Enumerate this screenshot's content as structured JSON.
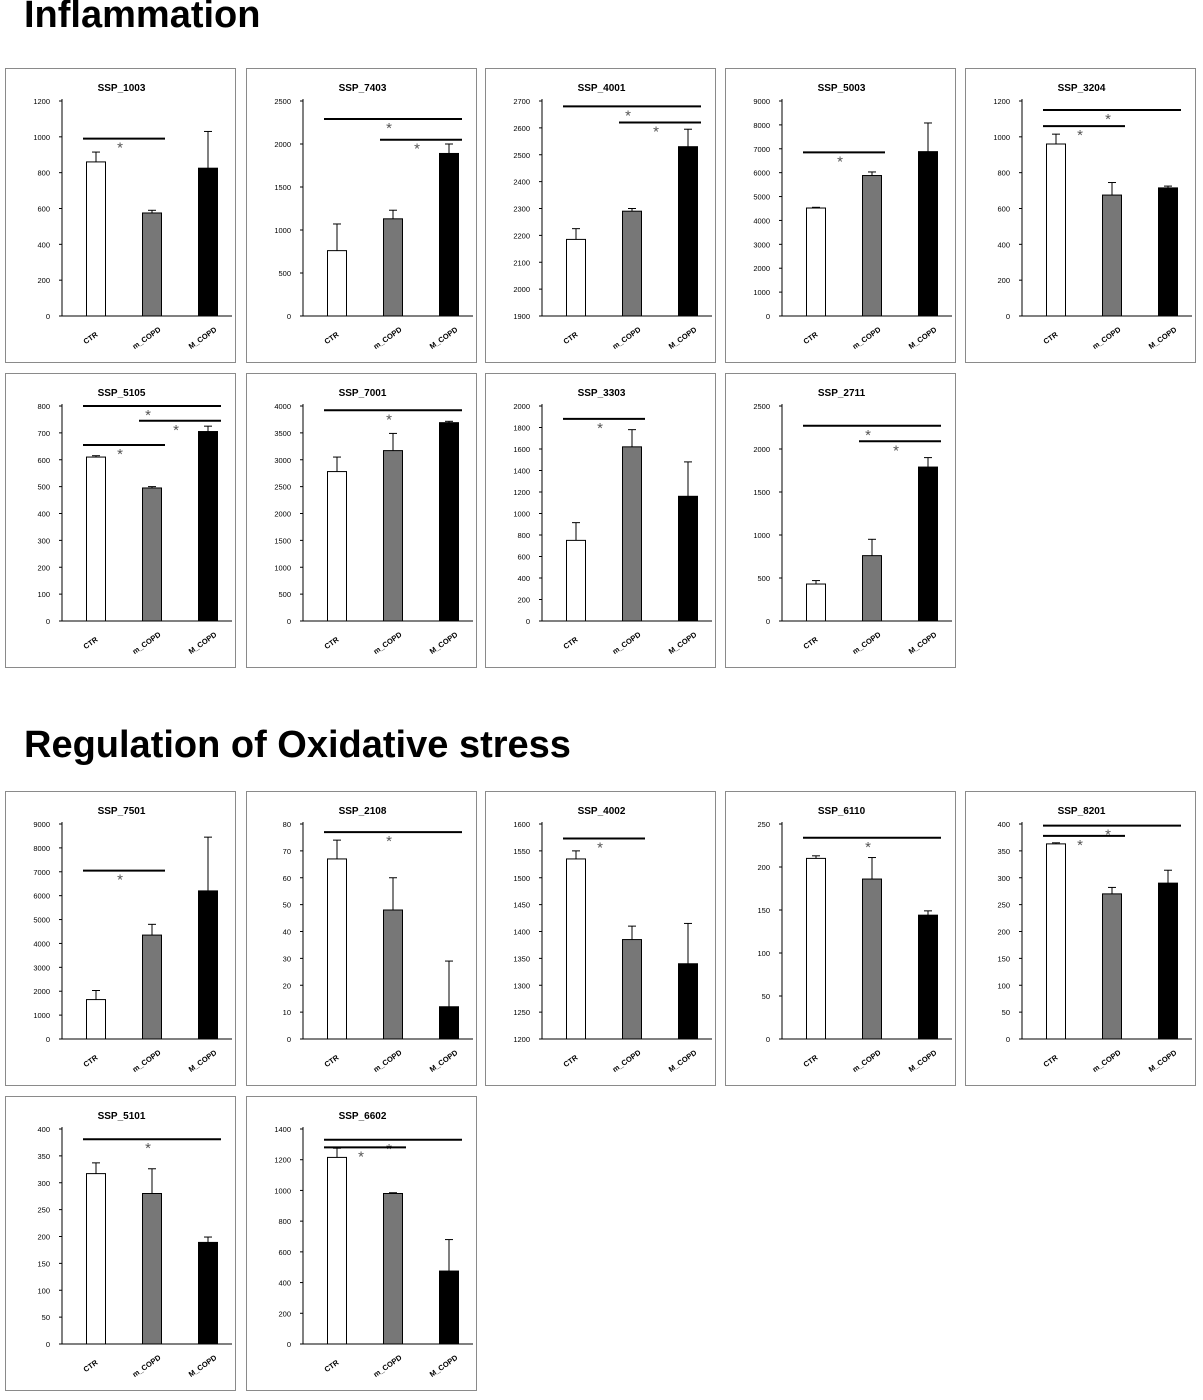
{
  "sections": [
    {
      "title": "Inflammation"
    },
    {
      "title": "Regulation of Oxidative stress"
    }
  ],
  "colors": {
    "CTR": "#ffffff",
    "m_COPD": "#777777",
    "M_COPD": "#000000",
    "border": "#8a8a8a",
    "star": "#555555"
  },
  "chart_data": [
    {
      "type": "bar",
      "section": 0,
      "title": "SSP_1003",
      "categories": [
        "CTR",
        "m_COPD",
        "M_COPD"
      ],
      "values": [
        860,
        575,
        825
      ],
      "errors": [
        55,
        15,
        205
      ],
      "ylim": [
        0,
        1200
      ],
      "ticks": [
        0,
        200,
        400,
        600,
        800,
        1000,
        1200
      ],
      "brackets": [
        {
          "from": 0,
          "to": 1,
          "y": 990
        }
      ],
      "stars": [
        "*"
      ]
    },
    {
      "type": "bar",
      "section": 0,
      "title": "SSP_7403",
      "categories": [
        "CTR",
        "m_COPD",
        "M_COPD"
      ],
      "values": [
        760,
        1130,
        1890
      ],
      "errors": [
        310,
        100,
        110
      ],
      "ylim": [
        0,
        2500
      ],
      "ticks": [
        0,
        500,
        1000,
        1500,
        2000,
        2500
      ],
      "brackets": [
        {
          "from": 0,
          "to": 2,
          "y": 2290
        },
        {
          "from": 1,
          "to": 2,
          "y": 2050
        }
      ],
      "stars": [
        "*",
        "*"
      ]
    },
    {
      "type": "bar",
      "section": 0,
      "title": "SSP_4001",
      "categories": [
        "CTR",
        "m_COPD",
        "M_COPD"
      ],
      "values": [
        2185,
        2290,
        2530
      ],
      "errors": [
        40,
        10,
        65
      ],
      "ylim": [
        1900,
        2700
      ],
      "ticks": [
        1900,
        2000,
        2100,
        2200,
        2300,
        2400,
        2500,
        2600,
        2700
      ],
      "brackets": [
        {
          "from": 0,
          "to": 2,
          "y": 2680
        },
        {
          "from": 1,
          "to": 2,
          "y": 2620
        }
      ],
      "stars": [
        "*",
        "*"
      ]
    },
    {
      "type": "bar",
      "section": 0,
      "title": "SSP_5003",
      "categories": [
        "CTR",
        "m_COPD",
        "M_COPD"
      ],
      "values": [
        4520,
        5880,
        6880
      ],
      "errors": [
        30,
        150,
        1200
      ],
      "ylim": [
        0,
        9000
      ],
      "ticks": [
        0,
        1000,
        2000,
        3000,
        4000,
        5000,
        6000,
        7000,
        8000,
        9000
      ],
      "brackets": [
        {
          "from": 0,
          "to": 1,
          "y": 6850
        }
      ],
      "stars": [
        "*"
      ]
    },
    {
      "type": "bar",
      "section": 0,
      "title": "SSP_3204",
      "categories": [
        "CTR",
        "m_COPD",
        "M_COPD"
      ],
      "values": [
        960,
        675,
        715
      ],
      "errors": [
        55,
        70,
        10
      ],
      "ylim": [
        0,
        1200
      ],
      "ticks": [
        0,
        200,
        400,
        600,
        800,
        1000,
        1200
      ],
      "brackets": [
        {
          "from": 0,
          "to": 2,
          "y": 1150
        },
        {
          "from": 0,
          "to": 1,
          "y": 1060
        }
      ],
      "stars": [
        "*",
        "*"
      ]
    },
    {
      "type": "bar",
      "section": 0,
      "title": "SSP_5105",
      "categories": [
        "CTR",
        "m_COPD",
        "M_COPD"
      ],
      "values": [
        610,
        495,
        705
      ],
      "errors": [
        5,
        5,
        20
      ],
      "ylim": [
        0,
        800
      ],
      "ticks": [
        0,
        100,
        200,
        300,
        400,
        500,
        600,
        700,
        800
      ],
      "brackets": [
        {
          "from": 0,
          "to": 2,
          "y": 800
        },
        {
          "from": 1,
          "to": 2,
          "y": 745
        },
        {
          "from": 0,
          "to": 1,
          "y": 655
        }
      ],
      "stars": [
        "*",
        "*",
        "*"
      ]
    },
    {
      "type": "bar",
      "section": 0,
      "title": "SSP_7001",
      "categories": [
        "CTR",
        "m_COPD",
        "M_COPD"
      ],
      "values": [
        2780,
        3170,
        3690
      ],
      "errors": [
        270,
        320,
        25
      ],
      "ylim": [
        0,
        4000
      ],
      "ticks": [
        0,
        500,
        1000,
        1500,
        2000,
        2500,
        3000,
        3500,
        4000
      ],
      "brackets": [
        {
          "from": 0,
          "to": 2,
          "y": 3920
        }
      ],
      "stars": [
        "*"
      ]
    },
    {
      "type": "bar",
      "section": 0,
      "title": "SSP_3303",
      "categories": [
        "CTR",
        "m_COPD",
        "M_COPD"
      ],
      "values": [
        750,
        1620,
        1160
      ],
      "errors": [
        165,
        160,
        320
      ],
      "ylim": [
        0,
        2000
      ],
      "ticks": [
        0,
        200,
        400,
        600,
        800,
        1000,
        1200,
        1400,
        1600,
        1800,
        2000
      ],
      "brackets": [
        {
          "from": 0,
          "to": 1,
          "y": 1880
        }
      ],
      "stars": [
        "*"
      ]
    },
    {
      "type": "bar",
      "section": 0,
      "title": "SSP_2711",
      "categories": [
        "CTR",
        "m_COPD",
        "M_COPD"
      ],
      "values": [
        430,
        760,
        1790
      ],
      "errors": [
        40,
        190,
        110
      ],
      "ylim": [
        0,
        2500
      ],
      "ticks": [
        0,
        500,
        1000,
        1500,
        2000,
        2500
      ],
      "brackets": [
        {
          "from": 0,
          "to": 2,
          "y": 2270
        },
        {
          "from": 1,
          "to": 2,
          "y": 2090
        }
      ],
      "stars": [
        "*",
        "*"
      ]
    },
    {
      "type": "bar",
      "section": 1,
      "title": "SSP_7501",
      "categories": [
        "CTR",
        "m_COPD",
        "M_COPD"
      ],
      "values": [
        1650,
        4350,
        6200
      ],
      "errors": [
        380,
        450,
        2250
      ],
      "ylim": [
        0,
        9000
      ],
      "ticks": [
        0,
        1000,
        2000,
        3000,
        4000,
        5000,
        6000,
        7000,
        8000,
        9000
      ],
      "brackets": [
        {
          "from": 0,
          "to": 1,
          "y": 7050
        }
      ],
      "stars": [
        "*"
      ]
    },
    {
      "type": "bar",
      "section": 1,
      "title": "SSP_2108",
      "categories": [
        "CTR",
        "m_COPD",
        "M_COPD"
      ],
      "values": [
        67,
        48,
        12
      ],
      "errors": [
        7,
        12,
        17
      ],
      "ylim": [
        0,
        80
      ],
      "ticks": [
        0,
        10,
        20,
        30,
        40,
        50,
        60,
        70,
        80
      ],
      "brackets": [
        {
          "from": 0,
          "to": 2,
          "y": 77
        }
      ],
      "stars": [
        "*"
      ]
    },
    {
      "type": "bar",
      "section": 1,
      "title": "SSP_4002",
      "categories": [
        "CTR",
        "m_COPD",
        "M_COPD"
      ],
      "values": [
        1535,
        1385,
        1340
      ],
      "errors": [
        15,
        25,
        75
      ],
      "ylim": [
        1200,
        1600
      ],
      "ticks": [
        1200,
        1250,
        1300,
        1350,
        1400,
        1450,
        1500,
        1550,
        1600
      ],
      "brackets": [
        {
          "from": 0,
          "to": 1,
          "y": 1573
        }
      ],
      "stars": [
        "*"
      ]
    },
    {
      "type": "bar",
      "section": 1,
      "title": "SSP_6110",
      "categories": [
        "CTR",
        "m_COPD",
        "M_COPD"
      ],
      "values": [
        210,
        186,
        144
      ],
      "errors": [
        3,
        25,
        5
      ],
      "ylim": [
        0,
        250
      ],
      "ticks": [
        0,
        50,
        100,
        150,
        200,
        250
      ],
      "brackets": [
        {
          "from": 0,
          "to": 2,
          "y": 234
        }
      ],
      "stars": [
        "*"
      ]
    },
    {
      "type": "bar",
      "section": 1,
      "title": "SSP_8201",
      "categories": [
        "CTR",
        "m_COPD",
        "M_COPD"
      ],
      "values": [
        363,
        270,
        290
      ],
      "errors": [
        2,
        12,
        24
      ],
      "ylim": [
        0,
        400
      ],
      "ticks": [
        0,
        50,
        100,
        150,
        200,
        250,
        300,
        350,
        400
      ],
      "brackets": [
        {
          "from": 0,
          "to": 2,
          "y": 397
        },
        {
          "from": 0,
          "to": 1,
          "y": 378
        }
      ],
      "stars": [
        "*",
        "*"
      ]
    },
    {
      "type": "bar",
      "section": 1,
      "title": "SSP_5101",
      "categories": [
        "CTR",
        "m_COPD",
        "M_COPD"
      ],
      "values": [
        317,
        280,
        189
      ],
      "errors": [
        20,
        46,
        10
      ],
      "ylim": [
        0,
        400
      ],
      "ticks": [
        0,
        50,
        100,
        150,
        200,
        250,
        300,
        350,
        400
      ],
      "brackets": [
        {
          "from": 0,
          "to": 2,
          "y": 381
        }
      ],
      "stars": [
        "*"
      ]
    },
    {
      "type": "bar",
      "section": 1,
      "title": "SSP_6602",
      "categories": [
        "CTR",
        "m_COPD",
        "M_COPD"
      ],
      "values": [
        1215,
        980,
        475
      ],
      "errors": [
        60,
        5,
        205
      ],
      "ylim": [
        0,
        1400
      ],
      "ticks": [
        0,
        200,
        400,
        600,
        800,
        1000,
        1200,
        1400
      ],
      "brackets": [
        {
          "from": 0,
          "to": 2,
          "y": 1330
        },
        {
          "from": 0,
          "to": 1,
          "y": 1280
        }
      ],
      "stars": [
        "*",
        "*"
      ]
    }
  ]
}
